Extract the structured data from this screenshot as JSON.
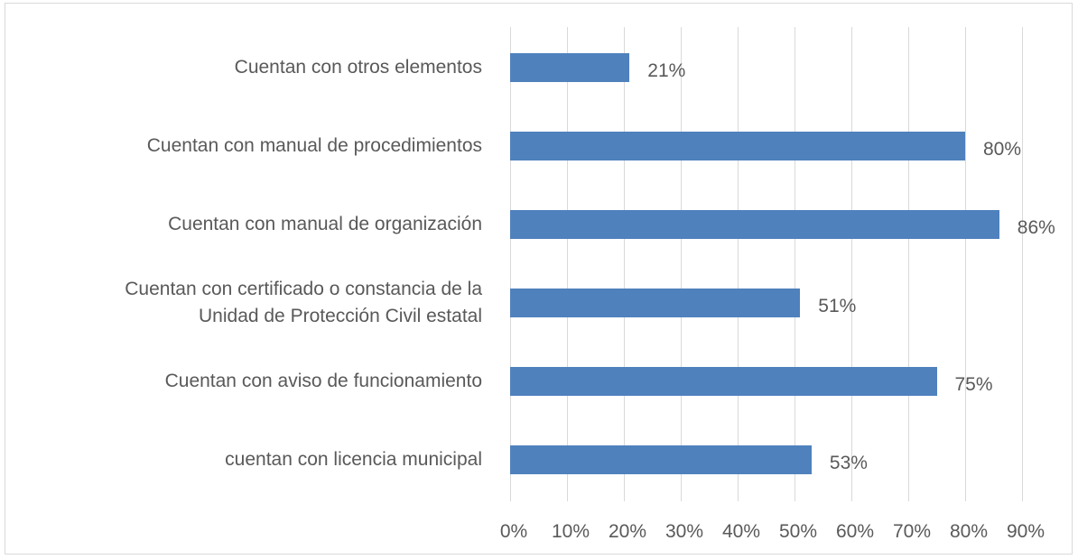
{
  "chart_data": {
    "type": "bar",
    "orientation": "horizontal",
    "categories": [
      "Cuentan con otros elementos",
      "Cuentan con manual de procedimientos",
      "Cuentan con manual de organización",
      "Cuentan con certificado o constancia de la\nUnidad de Protección Civil estatal",
      "Cuentan con aviso de funcionamiento",
      "cuentan con licencia municipal"
    ],
    "values": [
      21,
      80,
      86,
      51,
      75,
      53
    ],
    "value_labels": [
      "21%",
      "80%",
      "86%",
      "51%",
      "75%",
      "53%"
    ],
    "color": "#4f81bd",
    "xlim": [
      0,
      90
    ],
    "xticks": [
      {
        "value": 0,
        "label": "0%"
      },
      {
        "value": 10,
        "label": "10%"
      },
      {
        "value": 20,
        "label": "20%"
      },
      {
        "value": 30,
        "label": "30%"
      },
      {
        "value": 40,
        "label": "40%"
      },
      {
        "value": 50,
        "label": "50%"
      },
      {
        "value": 60,
        "label": "60%"
      },
      {
        "value": 70,
        "label": "70%"
      },
      {
        "value": 80,
        "label": "80%"
      },
      {
        "value": 90,
        "label": "90%"
      }
    ],
    "grid": true
  }
}
